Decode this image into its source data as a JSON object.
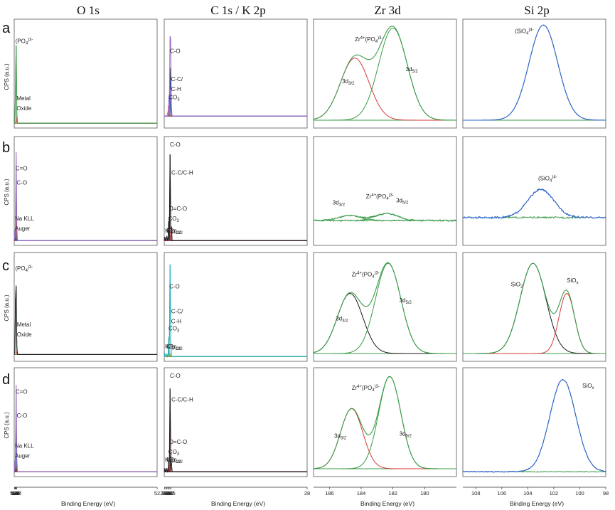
{
  "figure": {
    "columns": [
      "O 1s",
      "C 1s / K 2p",
      "Zr 3d",
      "Si 2p"
    ],
    "rows": [
      "a",
      "b",
      "c",
      "d"
    ],
    "ylabel": "CPS (a.u.)",
    "xlabel": "Binding Energy (eV)"
  },
  "colors": {
    "envelope": "#9b6fc9",
    "fit": "#1a1a1a",
    "green": "#3a9b48",
    "red": "#d63a3a",
    "blue": "#2f66c9",
    "teal": "#26b3c2",
    "baseline_blue": "#4058c0",
    "olive": "#a8a020"
  },
  "chart_data": [
    {
      "panel": "a-O1s",
      "type": "line",
      "xlim": [
        538.8,
        52
      ],
      "xticks": [
        538,
        536,
        534,
        532,
        530,
        52
      ],
      "baseline": 0.02,
      "noise": 0,
      "peaks": [
        {
          "c": 532.8,
          "w": 1.1,
          "h": 0.92,
          "color": "#3a9b48"
        },
        {
          "c": 530.2,
          "w": 0.45,
          "h": 0.08,
          "color": "#d63a3a"
        }
      ],
      "envelope_color": "#3a9b48",
      "envelope_offset": 0,
      "labels": [
        {
          "text": "(PO",
          "sub": "4",
          "sup": ")3-",
          "x": 535.0,
          "y": 0.82
        },
        {
          "text": "Metal",
          "x": 530.6,
          "y": 0.25
        },
        {
          "text": "Oxide",
          "x": 530.6,
          "y": 0.15
        }
      ]
    },
    {
      "panel": "a-C1s",
      "type": "line",
      "xlim": [
        297.8,
        28
      ],
      "xticks": [
        297,
        295,
        293,
        291,
        289,
        287,
        285,
        28
      ],
      "baseline": 0.09,
      "noise": 0,
      "peaks": [
        {
          "c": 288.6,
          "w": 0.55,
          "h": 0.18,
          "color": "#d63a3a"
        },
        {
          "c": 286.6,
          "w": 0.6,
          "h": 0.5,
          "color": "#1a1a1a"
        },
        {
          "c": 285.4,
          "w": 0.55,
          "h": 0.38,
          "color": "#2f66c9"
        },
        {
          "c": 286.1,
          "w": 0.8,
          "h": 0.35,
          "color": "#9b6fc9"
        }
      ],
      "envelope_color": "#9b6fc9",
      "envelope_offset": 0.08,
      "labels": [
        {
          "text": "CO",
          "sub": "3",
          "x": 289.5,
          "y": 0.26
        },
        {
          "text": "C-O",
          "x": 287.2,
          "y": 0.72
        },
        {
          "text": "C-C/",
          "x": 284.9,
          "y": 0.44
        },
        {
          "text": "C-H",
          "x": 284.9,
          "y": 0.34
        }
      ]
    },
    {
      "panel": "a-Zr3d",
      "type": "line",
      "xlim": [
        187.0,
        178.0
      ],
      "xticks": [
        186,
        184,
        182,
        180
      ],
      "baseline": 0.05,
      "noise": 0,
      "peaks": [
        {
          "c": 184.4,
          "w": 0.9,
          "h": 0.62,
          "color": "#d63a3a"
        },
        {
          "c": 182.0,
          "w": 0.9,
          "h": 0.92,
          "color": "#3a9b48"
        }
      ],
      "envelope_color": "#3a9b48",
      "envelope_offset": 0,
      "labels": [
        {
          "text": "Zr",
          "sup": "4+",
          "text2": "(PO",
          "sub": "4",
          "sup2": ")3-",
          "x": 184.4,
          "y": 0.84
        },
        {
          "text": "3d",
          "sub": "3/2",
          "x": 185.2,
          "y": 0.42
        },
        {
          "text": "3d",
          "sub": "5/2",
          "x": 181.2,
          "y": 0.54
        }
      ]
    },
    {
      "panel": "a-Si2p",
      "type": "line",
      "xlim": [
        109.0,
        98.0
      ],
      "xticks": [
        108,
        106,
        104,
        102,
        100,
        98
      ],
      "baseline": 0.05,
      "noise": 0,
      "peaks": [
        {
          "c": 102.8,
          "w": 1.1,
          "h": 0.95,
          "color": "#2f66c9"
        }
      ],
      "envelope_color": "#2f66c9",
      "envelope_offset": 0,
      "labels": [
        {
          "text": "(SiO",
          "sub": "4",
          "sup": ")4-",
          "x": 105.0,
          "y": 0.92
        }
      ]
    },
    {
      "panel": "b-O1s",
      "type": "line",
      "xlim": [
        538.8,
        52
      ],
      "xticks": [
        538,
        536,
        534,
        532,
        530,
        52
      ],
      "baseline": 0.02,
      "noise": 0,
      "peaks": [
        {
          "c": 532.7,
          "w": 0.75,
          "h": 0.82,
          "color": "#1a1a1a"
        },
        {
          "c": 531.2,
          "w": 0.65,
          "h": 0.58,
          "color": "#d63a3a"
        },
        {
          "c": 535.8,
          "w": 0.9,
          "h": 0.1,
          "color": "#2f66c9"
        }
      ],
      "envelope_color": "#9b6fc9",
      "envelope_offset": 0.06,
      "labels": [
        {
          "text": "C=O",
          "x": 534.3,
          "y": 0.72
        },
        {
          "text": "C-O",
          "x": 530.6,
          "y": 0.58
        },
        {
          "text": "Na KLL",
          "x": 536.6,
          "y": 0.22
        },
        {
          "text": "Auger",
          "x": 536.4,
          "y": 0.12
        }
      ]
    },
    {
      "panel": "b-C1s",
      "type": "line",
      "xlim": [
        297.8,
        28
      ],
      "xticks": [
        297,
        295,
        293,
        291,
        289,
        287,
        285,
        28
      ],
      "baseline": 0.02,
      "noise": 0,
      "peaks": [
        {
          "c": 296.4,
          "w": 0.4,
          "h": 0.04,
          "color": "#9b6fc9"
        },
        {
          "c": 293.2,
          "w": 0.4,
          "h": 0.06,
          "color": "#9b6fc9"
        },
        {
          "c": 289.5,
          "w": 0.45,
          "h": 0.24,
          "color": "#1a1a1a"
        },
        {
          "c": 288.0,
          "w": 0.45,
          "h": 0.08,
          "color": "#2f66c9"
        },
        {
          "c": 286.9,
          "w": 0.45,
          "h": 0.9,
          "color": "#1a1a1a"
        },
        {
          "c": 284.9,
          "w": 0.35,
          "h": 0.58,
          "color": "#d63a3a"
        }
      ],
      "envelope_color": "#1a1a1a",
      "envelope_offset": 0,
      "labels": [
        {
          "text": "C-O",
          "x": 287.0,
          "y": 0.96
        },
        {
          "text": "C-C/C-H",
          "x": 284.4,
          "y": 0.68
        },
        {
          "text": "O=C-O",
          "x": 289.0,
          "y": 0.32
        },
        {
          "text": "CO",
          "sub": "3",
          "x": 290.4,
          "y": 0.22
        },
        {
          "text": "K2p",
          "sub": "1/2",
          "x": 296.3,
          "y": 0.1
        },
        {
          "text": "K2p",
          "sub": "3/2",
          "x": 293.4,
          "y": 0.1
        }
      ]
    },
    {
      "panel": "b-Zr3d",
      "type": "line",
      "xlim": [
        187.0,
        178.0
      ],
      "xticks": [
        186,
        184,
        182,
        180
      ],
      "baseline": 0.22,
      "noise": 0.006,
      "peaks": [
        {
          "c": 184.7,
          "w": 0.7,
          "h": 0.05,
          "color": "#3a9b48"
        },
        {
          "c": 182.4,
          "w": 0.7,
          "h": 0.07,
          "color": "#3a9b48"
        }
      ],
      "envelope_color": "#3a9b48",
      "envelope_offset": 0,
      "labels": [
        {
          "text": "3d",
          "sub": "3/2",
          "x": 185.8,
          "y": 0.38
        },
        {
          "text": "Zr",
          "sup": "4+",
          "text2": "(PO",
          "sub": "4",
          "sup2": ")3-",
          "x": 183.7,
          "y": 0.44
        },
        {
          "text": "3d",
          "sub": "5/2",
          "x": 181.8,
          "y": 0.4
        }
      ]
    },
    {
      "panel": "b-Si2p",
      "type": "line",
      "xlim": [
        109.0,
        98.0
      ],
      "xticks": [
        108,
        106,
        104,
        102,
        100,
        98
      ],
      "baseline": 0.25,
      "noise": 0.008,
      "peaks": [
        {
          "c": 103.0,
          "w": 1.0,
          "h": 0.28,
          "color": "#2f66c9"
        }
      ],
      "envelope_color": "#2f66c9",
      "envelope_offset": 0,
      "labels": [
        {
          "text": "(SiO",
          "sub": "4",
          "sup": ")4-",
          "x": 103.2,
          "y": 0.62
        }
      ]
    },
    {
      "panel": "c-O1s",
      "type": "line",
      "xlim": [
        538.8,
        52
      ],
      "xticks": [
        538,
        536,
        534,
        532,
        530,
        52
      ],
      "baseline": 0.04,
      "noise": 0,
      "peaks": [
        {
          "c": 533.1,
          "w": 1.3,
          "h": 0.88,
          "color": "#3a9b48"
        },
        {
          "c": 530.9,
          "w": 0.55,
          "h": 0.14,
          "color": "#d63a3a"
        }
      ],
      "envelope_color": "#1a1a1a",
      "envelope_offset": 0.0,
      "labels": [
        {
          "text": "(PO",
          "sub": "4",
          "sup": ")3-",
          "x": 535.4,
          "y": 0.88
        },
        {
          "text": "Metal",
          "x": 529.8,
          "y": 0.32
        },
        {
          "text": "Oxide",
          "x": 529.8,
          "y": 0.22
        }
      ]
    },
    {
      "panel": "c-C1s",
      "type": "line",
      "xlim": [
        297.8,
        28
      ],
      "xticks": [
        297,
        295,
        293,
        291,
        289,
        287,
        285,
        28
      ],
      "baseline": 0.02,
      "noise": 0,
      "peaks": [
        {
          "c": 296.3,
          "w": 0.45,
          "h": 0.03,
          "color": "#3a9b48"
        },
        {
          "c": 293.3,
          "w": 0.4,
          "h": 0.04,
          "color": "#3a9b48"
        },
        {
          "c": 289.4,
          "w": 0.5,
          "h": 0.2,
          "color": "#3a9b48"
        },
        {
          "c": 286.8,
          "w": 0.65,
          "h": 0.92,
          "color": "#26b3c2"
        },
        {
          "c": 285.1,
          "w": 0.35,
          "h": 0.06,
          "color": "#a8a020"
        }
      ],
      "envelope_color": "#26b3c2",
      "envelope_offset": 0,
      "labels": [
        {
          "text": "C-O",
          "x": 288.3,
          "y": 0.7
        },
        {
          "text": "C-C/",
          "x": 284.7,
          "y": 0.45
        },
        {
          "text": "C-H",
          "x": 284.7,
          "y": 0.35
        },
        {
          "text": "CO",
          "sub": "3",
          "x": 289.8,
          "y": 0.28
        },
        {
          "text": "K2p",
          "sub": "1/2",
          "x": 296.3,
          "y": 0.1
        },
        {
          "text": "K2p",
          "sub": "3/2",
          "x": 293.6,
          "y": 0.1
        }
      ]
    },
    {
      "panel": "c-Zr3d",
      "type": "line",
      "xlim": [
        187.0,
        178.0
      ],
      "xticks": [
        186,
        184,
        182,
        180
      ],
      "baseline": 0.05,
      "noise": 0,
      "peaks": [
        {
          "c": 184.7,
          "w": 0.8,
          "h": 0.6,
          "color": "#1a1a1a"
        },
        {
          "c": 182.3,
          "w": 0.8,
          "h": 0.9,
          "color": "#3a9b48"
        }
      ],
      "envelope_color": "#3a9b48",
      "envelope_offset": 0,
      "labels": [
        {
          "text": "Zr",
          "sup": "4+",
          "text2": "(PO",
          "sub": "4",
          "sup2": ")3-",
          "x": 184.6,
          "y": 0.82
        },
        {
          "text": "3d",
          "sub": "3/2",
          "x": 185.6,
          "y": 0.38
        },
        {
          "text": "3d",
          "sub": "5/2",
          "x": 181.6,
          "y": 0.56
        }
      ]
    },
    {
      "panel": "c-Si2p",
      "type": "line",
      "xlim": [
        109.0,
        98.0
      ],
      "xticks": [
        108,
        106,
        104,
        102,
        100,
        98
      ],
      "baseline": 0.05,
      "noise": 0,
      "peaks": [
        {
          "c": 103.6,
          "w": 1.0,
          "h": 0.9,
          "color": "#1a1a1a"
        },
        {
          "c": 101.0,
          "w": 0.6,
          "h": 0.6,
          "color": "#d63a3a"
        }
      ],
      "envelope_color": "#3a9b48",
      "envelope_offset": 0,
      "labels": [
        {
          "text": "SiO",
          "sub": "2",
          "x": 105.3,
          "y": 0.72
        },
        {
          "text": "SiO",
          "sub": "x",
          "x": 101.0,
          "y": 0.76
        }
      ]
    },
    {
      "panel": "d-O1s",
      "type": "line",
      "xlim": [
        538.8,
        52
      ],
      "xticks": [
        538,
        536,
        534,
        532,
        530,
        52
      ],
      "baseline": 0.02,
      "noise": 0,
      "peaks": [
        {
          "c": 532.8,
          "w": 0.7,
          "h": 0.8,
          "color": "#1a1a1a"
        },
        {
          "c": 531.3,
          "w": 0.7,
          "h": 0.6,
          "color": "#2f66c9"
        },
        {
          "c": 535.6,
          "w": 1.0,
          "h": 0.1,
          "color": "#d63a3a"
        }
      ],
      "envelope_color": "#9b6fc9",
      "envelope_offset": 0.06,
      "labels": [
        {
          "text": "C=O",
          "x": 534.2,
          "y": 0.8
        },
        {
          "text": "C-O",
          "x": 530.0,
          "y": 0.56
        },
        {
          "text": "Na KLL",
          "x": 536.5,
          "y": 0.26
        },
        {
          "text": "Auger",
          "x": 536.3,
          "y": 0.16
        }
      ]
    },
    {
      "panel": "d-C1s",
      "type": "line",
      "xlim": [
        297.8,
        28
      ],
      "xticks": [
        297,
        295,
        293,
        291,
        289,
        287,
        285,
        28
      ],
      "baseline": 0.02,
      "noise": 0,
      "peaks": [
        {
          "c": 296.3,
          "w": 0.45,
          "h": 0.04,
          "color": "#9b6fc9"
        },
        {
          "c": 293.3,
          "w": 0.4,
          "h": 0.06,
          "color": "#9b6fc9"
        },
        {
          "c": 289.4,
          "w": 0.45,
          "h": 0.12,
          "color": "#1a1a1a"
        },
        {
          "c": 288.0,
          "w": 0.45,
          "h": 0.1,
          "color": "#d63a3a"
        },
        {
          "c": 286.9,
          "w": 0.4,
          "h": 0.88,
          "color": "#d63a3a"
        },
        {
          "c": 285.0,
          "w": 0.35,
          "h": 0.6,
          "color": "#1a1a1a"
        }
      ],
      "envelope_color": "#1a1a1a",
      "envelope_offset": 0,
      "labels": [
        {
          "text": "C-O",
          "x": 287.0,
          "y": 0.96
        },
        {
          "text": "C-C/C-H",
          "x": 284.3,
          "y": 0.72
        },
        {
          "text": "O=C-O",
          "x": 288.8,
          "y": 0.3
        },
        {
          "text": "CO",
          "sub": "3",
          "x": 290.0,
          "y": 0.2
        },
        {
          "text": "K2p",
          "sub": "1/2",
          "x": 296.3,
          "y": 0.12
        },
        {
          "text": "K2p",
          "sub": "3/2",
          "x": 293.4,
          "y": 0.12
        }
      ]
    },
    {
      "panel": "d-Zr3d",
      "type": "line",
      "xlim": [
        187.0,
        178.0
      ],
      "xticks": [
        186,
        184,
        182,
        180
      ],
      "baseline": 0.05,
      "noise": 0,
      "peaks": [
        {
          "c": 184.6,
          "w": 0.7,
          "h": 0.6,
          "color": "#d63a3a"
        },
        {
          "c": 182.2,
          "w": 0.7,
          "h": 0.92,
          "color": "#3a9b48"
        }
      ],
      "envelope_color": "#3a9b48",
      "envelope_offset": 0,
      "labels": [
        {
          "text": "Zr",
          "sup": "4+",
          "text2": "(PO",
          "sub": "4",
          "sup2": ")3-",
          "x": 184.6,
          "y": 0.84
        },
        {
          "text": "3d",
          "sub": "3/2",
          "x": 185.7,
          "y": 0.36
        },
        {
          "text": "3d",
          "sub": "5/2",
          "x": 181.6,
          "y": 0.38
        }
      ]
    },
    {
      "panel": "d-Si2p",
      "type": "line",
      "xlim": [
        109.0,
        98.0
      ],
      "xticks": [
        108,
        106,
        104,
        102,
        100,
        98
      ],
      "baseline": 0.02,
      "noise": 0.004,
      "peaks": [
        {
          "c": 101.3,
          "w": 1.0,
          "h": 0.92,
          "color": "#2f66c9"
        }
      ],
      "envelope_color": "#2f66c9",
      "envelope_offset": 0,
      "labels": [
        {
          "text": "SiO",
          "sub": "x",
          "x": 99.8,
          "y": 0.86
        }
      ]
    }
  ]
}
